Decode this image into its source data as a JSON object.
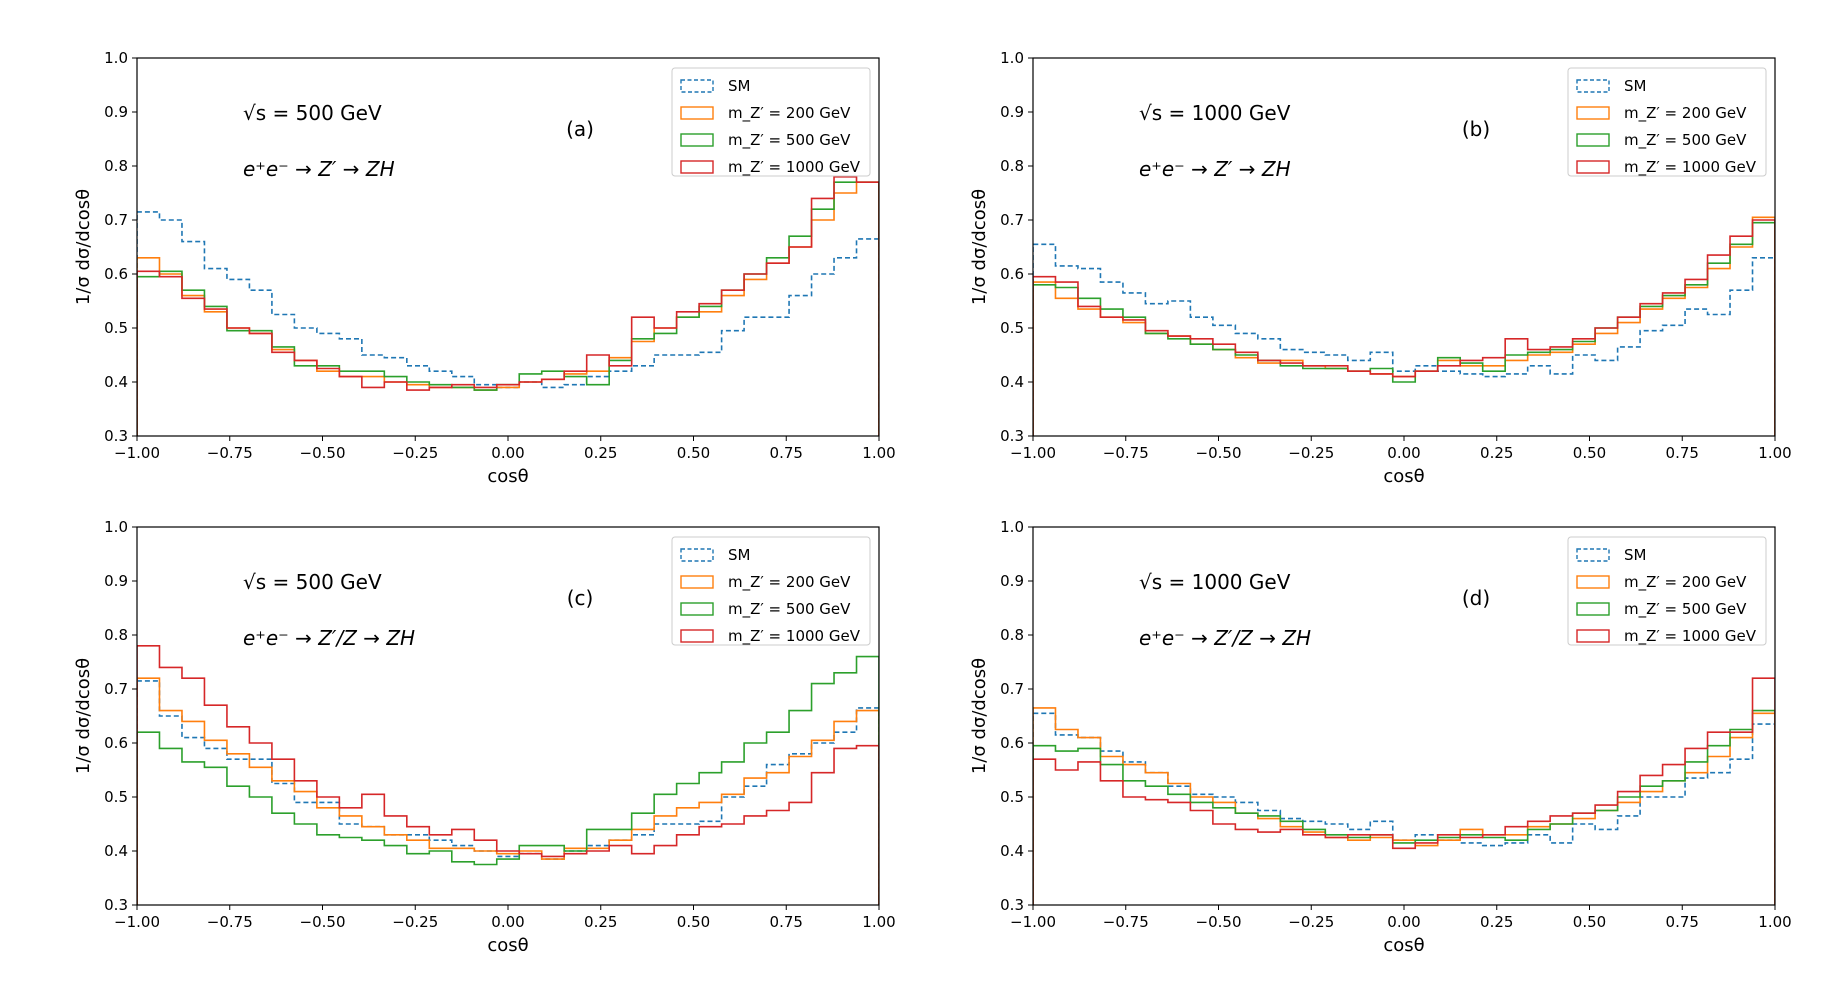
{
  "colors": {
    "SM": "#1f77b4",
    "mZ200": "#ff7f0e",
    "mZ500": "#2ca02c",
    "mZ1000": "#d62728"
  },
  "chart_data": [
    {
      "type": "line",
      "panel_label": "(a)",
      "sqrt_s_label": "√s = 500 GeV",
      "process_label": "e⁺e⁻ → Z′ → ZH",
      "xlabel": "cosθ",
      "ylabel": "1/σ dσ/dcosθ",
      "xlim": [
        -1.0,
        1.0
      ],
      "ylim": [
        0.3,
        1.0
      ],
      "xticks": [
        "−1.00",
        "−0.75",
        "−0.50",
        "−0.25",
        "0.00",
        "0.25",
        "0.50",
        "0.75",
        "1.00"
      ],
      "yticks": [
        "0.3",
        "0.4",
        "0.5",
        "0.6",
        "0.7",
        "0.8",
        "0.9",
        "1.0"
      ],
      "legend_position": "top-right",
      "series": [
        {
          "name": "SM",
          "legend": "SM",
          "color_key": "SM",
          "style": "dashed",
          "values": [
            0.715,
            0.7,
            0.66,
            0.61,
            0.59,
            0.57,
            0.525,
            0.5,
            0.49,
            0.48,
            0.45,
            0.445,
            0.43,
            0.42,
            0.41,
            0.395,
            0.39,
            0.4,
            0.39,
            0.395,
            0.41,
            0.42,
            0.43,
            0.45,
            0.45,
            0.455,
            0.495,
            0.52,
            0.52,
            0.56,
            0.6,
            0.63,
            0.665
          ]
        },
        {
          "name": "mZ' = 200 GeV",
          "legend": "m_Z′ = 200 GeV",
          "color_key": "mZ200",
          "style": "solid",
          "values": [
            0.63,
            0.6,
            0.56,
            0.53,
            0.5,
            0.49,
            0.46,
            0.44,
            0.42,
            0.41,
            0.41,
            0.4,
            0.395,
            0.39,
            0.39,
            0.385,
            0.39,
            0.4,
            0.405,
            0.415,
            0.42,
            0.445,
            0.475,
            0.5,
            0.52,
            0.53,
            0.56,
            0.59,
            0.62,
            0.65,
            0.7,
            0.75,
            0.77
          ]
        },
        {
          "name": "mZ' = 500 GeV",
          "legend": "m_Z′ = 500 GeV",
          "color_key": "mZ500",
          "style": "solid",
          "values": [
            0.595,
            0.605,
            0.57,
            0.54,
            0.495,
            0.495,
            0.465,
            0.43,
            0.43,
            0.42,
            0.42,
            0.41,
            0.4,
            0.395,
            0.39,
            0.385,
            0.395,
            0.415,
            0.42,
            0.41,
            0.395,
            0.44,
            0.48,
            0.49,
            0.52,
            0.54,
            0.57,
            0.6,
            0.63,
            0.67,
            0.72,
            0.77,
            0.77
          ]
        },
        {
          "name": "mZ' = 1000 GeV",
          "legend": "m_Z′ = 1000 GeV",
          "color_key": "mZ1000",
          "style": "solid",
          "values": [
            0.605,
            0.595,
            0.555,
            0.535,
            0.5,
            0.49,
            0.455,
            0.44,
            0.425,
            0.41,
            0.39,
            0.4,
            0.385,
            0.39,
            0.395,
            0.39,
            0.395,
            0.4,
            0.405,
            0.42,
            0.45,
            0.43,
            0.52,
            0.5,
            0.53,
            0.545,
            0.57,
            0.6,
            0.62,
            0.65,
            0.74,
            0.78,
            0.77
          ]
        }
      ]
    },
    {
      "type": "line",
      "panel_label": "(b)",
      "sqrt_s_label": "√s = 1000 GeV",
      "process_label": "e⁺e⁻ → Z′ → ZH",
      "xlabel": "cosθ",
      "ylabel": "1/σ dσ/dcosθ",
      "xlim": [
        -1.0,
        1.0
      ],
      "ylim": [
        0.3,
        1.0
      ],
      "xticks": [
        "−1.00",
        "−0.75",
        "−0.50",
        "−0.25",
        "0.00",
        "0.25",
        "0.50",
        "0.75",
        "1.00"
      ],
      "yticks": [
        "0.3",
        "0.4",
        "0.5",
        "0.6",
        "0.7",
        "0.8",
        "0.9",
        "1.0"
      ],
      "legend_position": "top-right",
      "series": [
        {
          "name": "SM",
          "legend": "SM",
          "color_key": "SM",
          "style": "dashed",
          "values": [
            0.655,
            0.615,
            0.61,
            0.585,
            0.565,
            0.545,
            0.55,
            0.52,
            0.505,
            0.49,
            0.48,
            0.46,
            0.455,
            0.45,
            0.44,
            0.455,
            0.42,
            0.43,
            0.42,
            0.415,
            0.41,
            0.415,
            0.43,
            0.415,
            0.45,
            0.44,
            0.465,
            0.495,
            0.505,
            0.535,
            0.525,
            0.57,
            0.63
          ]
        },
        {
          "name": "mZ' = 200 GeV",
          "legend": "m_Z′ = 200 GeV",
          "color_key": "mZ200",
          "style": "solid",
          "values": [
            0.585,
            0.555,
            0.535,
            0.52,
            0.51,
            0.49,
            0.485,
            0.47,
            0.46,
            0.445,
            0.435,
            0.44,
            0.43,
            0.425,
            0.42,
            0.415,
            0.41,
            0.42,
            0.44,
            0.43,
            0.43,
            0.44,
            0.45,
            0.455,
            0.47,
            0.49,
            0.51,
            0.535,
            0.555,
            0.575,
            0.61,
            0.65,
            0.705
          ]
        },
        {
          "name": "mZ' = 500 GeV",
          "legend": "m_Z′ = 500 GeV",
          "color_key": "mZ500",
          "style": "solid",
          "values": [
            0.58,
            0.575,
            0.555,
            0.535,
            0.52,
            0.49,
            0.48,
            0.47,
            0.46,
            0.45,
            0.44,
            0.43,
            0.425,
            0.425,
            0.42,
            0.425,
            0.4,
            0.42,
            0.445,
            0.435,
            0.42,
            0.45,
            0.455,
            0.46,
            0.475,
            0.5,
            0.52,
            0.54,
            0.56,
            0.58,
            0.62,
            0.655,
            0.695
          ]
        },
        {
          "name": "mZ' = 1000 GeV",
          "legend": "m_Z′ = 1000 GeV",
          "color_key": "mZ1000",
          "style": "solid",
          "values": [
            0.595,
            0.585,
            0.54,
            0.52,
            0.515,
            0.495,
            0.485,
            0.48,
            0.47,
            0.455,
            0.44,
            0.435,
            0.43,
            0.43,
            0.42,
            0.415,
            0.41,
            0.42,
            0.43,
            0.44,
            0.445,
            0.48,
            0.46,
            0.465,
            0.48,
            0.5,
            0.52,
            0.545,
            0.565,
            0.59,
            0.635,
            0.67,
            0.7
          ]
        }
      ]
    },
    {
      "type": "line",
      "panel_label": "(c)",
      "sqrt_s_label": "√s = 500 GeV",
      "process_label": "e⁺e⁻ → Z′/Z → ZH",
      "xlabel": "cosθ",
      "ylabel": "1/σ dσ/dcosθ",
      "xlim": [
        -1.0,
        1.0
      ],
      "ylim": [
        0.3,
        1.0
      ],
      "xticks": [
        "−1.00",
        "−0.75",
        "−0.50",
        "−0.25",
        "0.00",
        "0.25",
        "0.50",
        "0.75",
        "1.00"
      ],
      "yticks": [
        "0.3",
        "0.4",
        "0.5",
        "0.6",
        "0.7",
        "0.8",
        "0.9",
        "1.0"
      ],
      "legend_position": "top-right",
      "series": [
        {
          "name": "SM",
          "legend": "SM",
          "color_key": "SM",
          "style": "dashed",
          "values": [
            0.715,
            0.65,
            0.61,
            0.59,
            0.57,
            0.57,
            0.525,
            0.49,
            0.49,
            0.45,
            0.445,
            0.43,
            0.43,
            0.42,
            0.41,
            0.4,
            0.39,
            0.395,
            0.385,
            0.4,
            0.41,
            0.42,
            0.43,
            0.45,
            0.45,
            0.455,
            0.5,
            0.52,
            0.56,
            0.58,
            0.6,
            0.62,
            0.665
          ]
        },
        {
          "name": "mZ' = 200 GeV",
          "legend": "m_Z′ = 200 GeV",
          "color_key": "mZ200",
          "style": "solid",
          "values": [
            0.72,
            0.66,
            0.64,
            0.605,
            0.58,
            0.555,
            0.53,
            0.51,
            0.48,
            0.465,
            0.445,
            0.43,
            0.42,
            0.405,
            0.405,
            0.4,
            0.395,
            0.4,
            0.385,
            0.405,
            0.405,
            0.42,
            0.44,
            0.465,
            0.48,
            0.49,
            0.505,
            0.535,
            0.545,
            0.575,
            0.605,
            0.64,
            0.66
          ]
        },
        {
          "name": "mZ' = 500 GeV",
          "legend": "m_Z′ = 500 GeV",
          "color_key": "mZ500",
          "style": "solid",
          "values": [
            0.62,
            0.59,
            0.565,
            0.555,
            0.52,
            0.5,
            0.47,
            0.45,
            0.43,
            0.425,
            0.42,
            0.41,
            0.395,
            0.4,
            0.38,
            0.375,
            0.385,
            0.41,
            0.41,
            0.4,
            0.44,
            0.44,
            0.47,
            0.505,
            0.525,
            0.545,
            0.565,
            0.6,
            0.62,
            0.66,
            0.71,
            0.73,
            0.76
          ]
        },
        {
          "name": "mZ' = 1000 GeV",
          "legend": "m_Z′ = 1000 GeV",
          "color_key": "mZ1000",
          "style": "solid",
          "values": [
            0.78,
            0.74,
            0.72,
            0.67,
            0.63,
            0.6,
            0.57,
            0.53,
            0.5,
            0.48,
            0.505,
            0.465,
            0.445,
            0.43,
            0.44,
            0.42,
            0.4,
            0.395,
            0.39,
            0.395,
            0.4,
            0.41,
            0.395,
            0.41,
            0.43,
            0.445,
            0.45,
            0.465,
            0.475,
            0.49,
            0.545,
            0.59,
            0.595
          ]
        }
      ]
    },
    {
      "type": "line",
      "panel_label": "(d)",
      "sqrt_s_label": "√s = 1000 GeV",
      "process_label": "e⁺e⁻ → Z′/Z → ZH",
      "xlabel": "cosθ",
      "ylabel": "1/σ dσ/dcosθ",
      "xlim": [
        -1.0,
        1.0
      ],
      "ylim": [
        0.3,
        1.0
      ],
      "xticks": [
        "−1.00",
        "−0.75",
        "−0.50",
        "−0.25",
        "0.00",
        "0.25",
        "0.50",
        "0.75",
        "1.00"
      ],
      "yticks": [
        "0.3",
        "0.4",
        "0.5",
        "0.6",
        "0.7",
        "0.8",
        "0.9",
        "1.0"
      ],
      "legend_position": "top-right",
      "series": [
        {
          "name": "SM",
          "legend": "SM",
          "color_key": "SM",
          "style": "dashed",
          "values": [
            0.655,
            0.615,
            0.61,
            0.585,
            0.565,
            0.545,
            0.52,
            0.505,
            0.5,
            0.49,
            0.475,
            0.46,
            0.455,
            0.45,
            0.44,
            0.455,
            0.42,
            0.43,
            0.42,
            0.415,
            0.41,
            0.415,
            0.43,
            0.415,
            0.45,
            0.44,
            0.465,
            0.5,
            0.5,
            0.535,
            0.545,
            0.57,
            0.635
          ]
        },
        {
          "name": "mZ' = 200 GeV",
          "legend": "m_Z′ = 200 GeV",
          "color_key": "mZ200",
          "style": "solid",
          "values": [
            0.665,
            0.625,
            0.61,
            0.575,
            0.56,
            0.545,
            0.525,
            0.5,
            0.49,
            0.47,
            0.46,
            0.445,
            0.435,
            0.425,
            0.42,
            0.425,
            0.42,
            0.41,
            0.42,
            0.44,
            0.43,
            0.43,
            0.445,
            0.45,
            0.46,
            0.475,
            0.49,
            0.51,
            0.53,
            0.545,
            0.575,
            0.61,
            0.655
          ]
        },
        {
          "name": "mZ' = 500 GeV",
          "legend": "m_Z′ = 500 GeV",
          "color_key": "mZ500",
          "style": "solid",
          "values": [
            0.595,
            0.585,
            0.59,
            0.56,
            0.53,
            0.52,
            0.505,
            0.49,
            0.48,
            0.47,
            0.465,
            0.455,
            0.44,
            0.43,
            0.425,
            0.43,
            0.415,
            0.42,
            0.425,
            0.43,
            0.425,
            0.42,
            0.44,
            0.45,
            0.47,
            0.475,
            0.5,
            0.52,
            0.53,
            0.565,
            0.595,
            0.625,
            0.66
          ]
        },
        {
          "name": "mZ' = 1000 GeV",
          "legend": "m_Z′ = 1000 GeV",
          "color_key": "mZ1000",
          "style": "solid",
          "values": [
            0.57,
            0.55,
            0.565,
            0.53,
            0.5,
            0.495,
            0.49,
            0.475,
            0.45,
            0.44,
            0.435,
            0.44,
            0.43,
            0.425,
            0.43,
            0.43,
            0.405,
            0.415,
            0.43,
            0.425,
            0.43,
            0.445,
            0.455,
            0.465,
            0.47,
            0.485,
            0.51,
            0.54,
            0.56,
            0.59,
            0.62,
            0.62,
            0.72
          ]
        }
      ]
    }
  ]
}
